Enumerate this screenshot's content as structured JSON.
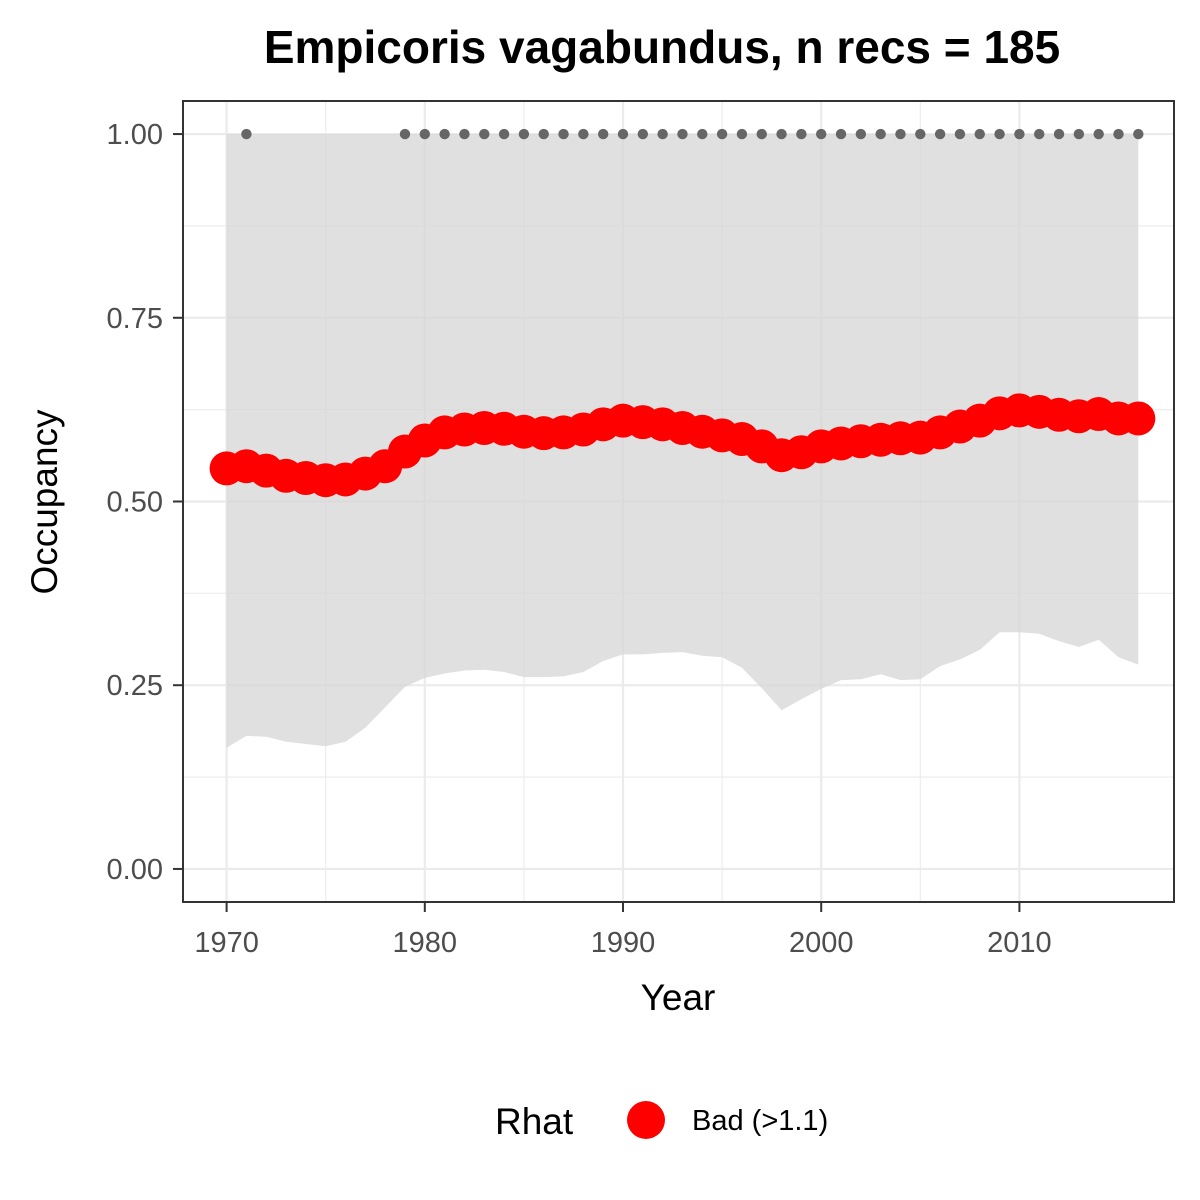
{
  "chart_data": {
    "type": "line",
    "title": "Empicoris vagabundus, n recs = 185",
    "xlabel": "Year",
    "ylabel": "Occupancy",
    "xlim": [
      1967.8,
      2017.8
    ],
    "ylim": [
      -0.045,
      1.045
    ],
    "x_ticks": [
      1970,
      1980,
      1990,
      2000,
      2010
    ],
    "x_tick_labels": [
      "1970",
      "1980",
      "1990",
      "2000",
      "2010"
    ],
    "y_ticks": [
      0,
      0.25,
      0.5,
      0.75,
      1
    ],
    "y_tick_labels": [
      "0.00",
      "0.25",
      "0.50",
      "0.75",
      "1.00"
    ],
    "grid": true,
    "legend": {
      "position": "bottom",
      "title": "Rhat",
      "entries": [
        {
          "label": "Bad (>1.1)",
          "color": "#ff0000"
        }
      ]
    },
    "x": [
      1970,
      1971,
      1972,
      1973,
      1974,
      1975,
      1976,
      1977,
      1978,
      1979,
      1980,
      1981,
      1982,
      1983,
      1984,
      1985,
      1986,
      1987,
      1988,
      1989,
      1990,
      1991,
      1992,
      1993,
      1994,
      1995,
      1996,
      1997,
      1998,
      1999,
      2000,
      2001,
      2002,
      2003,
      2004,
      2005,
      2006,
      2007,
      2008,
      2009,
      2010,
      2011,
      2012,
      2013,
      2014,
      2015,
      2016
    ],
    "series": [
      {
        "role": "mean",
        "color": "#ff0000",
        "values": [
          0.545,
          0.548,
          0.542,
          0.535,
          0.532,
          0.529,
          0.53,
          0.538,
          0.548,
          0.568,
          0.583,
          0.594,
          0.598,
          0.6,
          0.599,
          0.595,
          0.593,
          0.594,
          0.598,
          0.605,
          0.61,
          0.608,
          0.605,
          0.6,
          0.595,
          0.59,
          0.585,
          0.575,
          0.563,
          0.567,
          0.575,
          0.579,
          0.582,
          0.584,
          0.586,
          0.587,
          0.594,
          0.602,
          0.61,
          0.62,
          0.624,
          0.622,
          0.618,
          0.616,
          0.619,
          0.613,
          0.613
        ]
      },
      {
        "role": "lower_bound",
        "values": [
          0.165,
          0.181,
          0.18,
          0.173,
          0.17,
          0.167,
          0.173,
          0.192,
          0.22,
          0.248,
          0.26,
          0.266,
          0.27,
          0.271,
          0.268,
          0.261,
          0.261,
          0.262,
          0.268,
          0.283,
          0.292,
          0.292,
          0.294,
          0.295,
          0.29,
          0.288,
          0.274,
          0.246,
          0.216,
          0.231,
          0.245,
          0.257,
          0.258,
          0.265,
          0.257,
          0.258,
          0.276,
          0.285,
          0.298,
          0.322,
          0.322,
          0.32,
          0.31,
          0.302,
          0.312,
          0.288,
          0.278
        ]
      },
      {
        "role": "upper_bound",
        "values": [
          1,
          1,
          1,
          1,
          1,
          1,
          1,
          1,
          1,
          1,
          1,
          1,
          1,
          1,
          1,
          1,
          1,
          1,
          1,
          1,
          1,
          1,
          1,
          1,
          1,
          1,
          1,
          1,
          1,
          1,
          1,
          1,
          1,
          1,
          1,
          1,
          1,
          1,
          1,
          1,
          1,
          1,
          1,
          1,
          1,
          1,
          1
        ]
      },
      {
        "role": "detection_points",
        "color": "#666666",
        "x": [
          1971,
          1979,
          1980,
          1981,
          1982,
          1983,
          1984,
          1985,
          1986,
          1987,
          1988,
          1989,
          1990,
          1991,
          1992,
          1993,
          1994,
          1995,
          1996,
          1997,
          1998,
          1999,
          2000,
          2001,
          2002,
          2003,
          2004,
          2005,
          2006,
          2007,
          2008,
          2009,
          2010,
          2011,
          2012,
          2013,
          2014,
          2015,
          2016
        ],
        "values": [
          1,
          1,
          1,
          1,
          1,
          1,
          1,
          1,
          1,
          1,
          1,
          1,
          1,
          1,
          1,
          1,
          1,
          1,
          1,
          1,
          1,
          1,
          1,
          1,
          1,
          1,
          1,
          1,
          1,
          1,
          1,
          1,
          1,
          1,
          1,
          1,
          1,
          1,
          1
        ]
      }
    ]
  },
  "colors": {
    "ribbon": "#d6d6d6",
    "grid": "#ebebeb",
    "panel_border": "#333333",
    "mean_points": "#ff0000",
    "detection_points": "#666666"
  }
}
